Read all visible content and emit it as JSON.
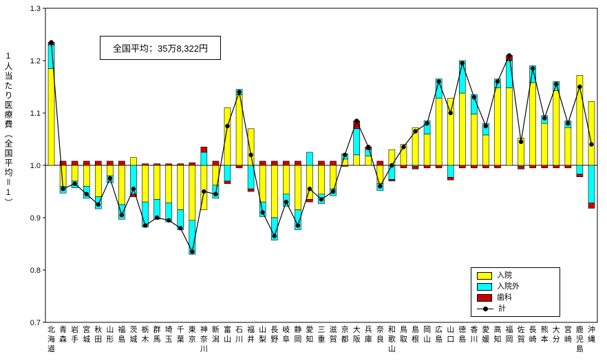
{
  "chart_data": {
    "type": "bar",
    "subtype": "stacked deviation bars from baseline 1.0 with total line",
    "title": "",
    "ylabel": "1人当たり医療費（全国平均＝1）",
    "xlabel": "",
    "ylim": [
      0.7,
      1.3
    ],
    "yticks": [
      0.7,
      0.8,
      0.9,
      1.0,
      1.1,
      1.2,
      1.3
    ],
    "baseline": 1.0,
    "grid": false,
    "legend_position": "bottom-right-inside",
    "annotation": {
      "text": "全国平均：35万8,322円"
    },
    "note": "series values are deviations from national average (=1); 計 = 1 + sum of series",
    "categories": [
      "北海道",
      "青森",
      "岩手",
      "宮城",
      "秋田",
      "山形",
      "福島",
      "茨城",
      "栃木",
      "群馬",
      "埼玉",
      "千葉",
      "東京",
      "神奈川",
      "新潟",
      "富山",
      "石川",
      "福井",
      "山梨",
      "長野",
      "岐阜",
      "静岡",
      "愛知",
      "三重",
      "滋賀",
      "京都",
      "大阪",
      "兵庫",
      "奈良",
      "和歌山",
      "鳥取",
      "島根",
      "岡山",
      "広島",
      "山口",
      "徳島",
      "香川",
      "愛媛",
      "高知",
      "福岡",
      "佐賀",
      "長崎",
      "熊本",
      "大分",
      "宮崎",
      "鹿児島",
      "沖縄"
    ],
    "series": [
      {
        "key": "inpatient",
        "name": "入院",
        "color": "#FFFF00",
        "values": [
          0.185,
          -0.04,
          -0.03,
          -0.04,
          -0.06,
          -0.02,
          -0.075,
          0.015,
          -0.07,
          -0.065,
          -0.072,
          -0.085,
          -0.105,
          -0.085,
          -0.038,
          0.11,
          0.135,
          0.07,
          -0.07,
          -0.1,
          -0.055,
          -0.085,
          -0.065,
          -0.055,
          -0.045,
          0.012,
          0.02,
          0.018,
          -0.035,
          0.03,
          0.04,
          0.072,
          0.06,
          0.128,
          0.128,
          0.138,
          0.098,
          0.058,
          0.148,
          0.148,
          0.052,
          0.158,
          0.08,
          0.143,
          0.072,
          0.172,
          0.122
        ]
      },
      {
        "key": "outpatient",
        "name": "入院外",
        "color": "#00FFFF",
        "values": [
          0.045,
          -0.013,
          -0.013,
          -0.023,
          -0.023,
          -0.013,
          -0.028,
          -0.055,
          -0.048,
          -0.038,
          -0.036,
          -0.038,
          -0.065,
          0.025,
          -0.025,
          -0.03,
          0.01,
          -0.045,
          -0.028,
          -0.043,
          -0.023,
          -0.038,
          0.025,
          -0.018,
          -0.013,
          0.01,
          0.05,
          0.012,
          -0.013,
          -0.027,
          0.0,
          -0.002,
          0.025,
          0.037,
          -0.023,
          0.062,
          0.037,
          0.022,
          0.017,
          0.052,
          -0.002,
          0.032,
          0.015,
          0.017,
          0.013,
          -0.017,
          -0.072
        ]
      },
      {
        "key": "dental",
        "name": "歯科",
        "color": "#CC0000",
        "values": [
          0.005,
          0.008,
          0.008,
          0.008,
          0.008,
          0.008,
          0.008,
          -0.005,
          0.003,
          0.003,
          0.003,
          0.003,
          0.005,
          0.01,
          0.008,
          -0.005,
          -0.005,
          -0.005,
          0.008,
          0.008,
          0.008,
          0.008,
          -0.005,
          0.008,
          0.008,
          -0.002,
          0.015,
          0.005,
          0.008,
          -0.003,
          -0.005,
          -0.005,
          -0.005,
          -0.005,
          -0.005,
          -0.005,
          -0.005,
          -0.005,
          -0.005,
          0.01,
          -0.005,
          -0.005,
          -0.005,
          -0.005,
          -0.005,
          -0.005,
          -0.01
        ]
      }
    ],
    "line_series": {
      "key": "total",
      "name": "計",
      "color": "#000000",
      "marker": "circle",
      "values": [
        1.235,
        0.955,
        0.965,
        0.945,
        0.925,
        0.975,
        0.905,
        0.955,
        0.885,
        0.9,
        0.895,
        0.88,
        0.835,
        0.95,
        0.945,
        1.075,
        1.14,
        1.02,
        0.91,
        0.865,
        0.93,
        0.885,
        0.955,
        0.935,
        0.95,
        1.02,
        1.085,
        1.035,
        0.96,
        1.0,
        1.035,
        1.065,
        1.08,
        1.16,
        1.1,
        1.195,
        1.13,
        1.075,
        1.16,
        1.21,
        1.045,
        1.185,
        1.09,
        1.155,
        1.08,
        1.15,
        1.04
      ]
    }
  }
}
